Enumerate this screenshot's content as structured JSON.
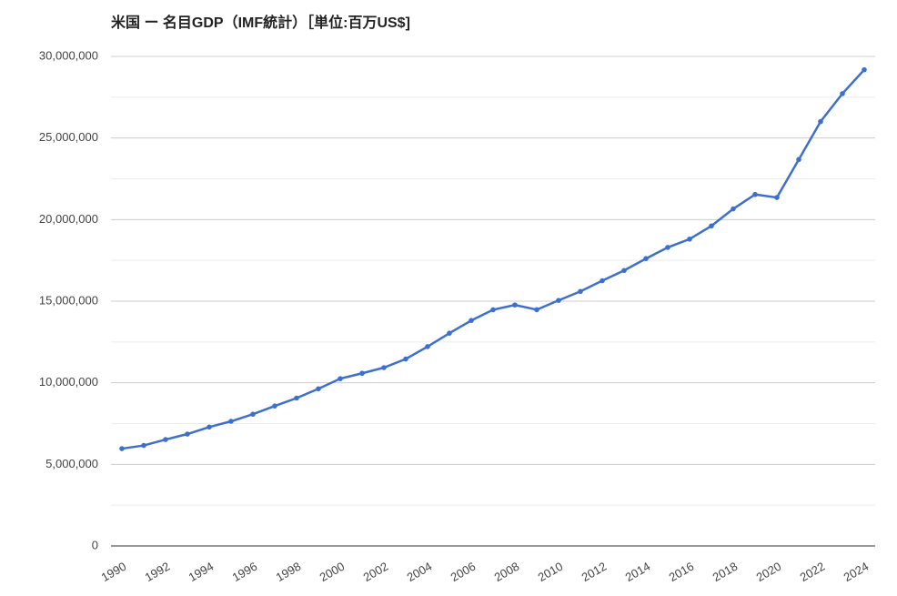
{
  "chart_data": {
    "type": "line",
    "title": "米国 ー 名目GDP（IMF統計）［単位:百万US$]",
    "x": [
      1990,
      1991,
      1992,
      1993,
      1994,
      1995,
      1996,
      1997,
      1998,
      1999,
      2000,
      2001,
      2002,
      2003,
      2004,
      2005,
      2006,
      2007,
      2008,
      2009,
      2010,
      2011,
      2012,
      2013,
      2014,
      2015,
      2016,
      2017,
      2018,
      2019,
      2020,
      2021,
      2022,
      2023,
      2024
    ],
    "series": [
      {
        "name": "GDP",
        "color": "#3c6fcf",
        "values": [
          5963000,
          6158000,
          6520000,
          6858000,
          7287000,
          7639000,
          8073000,
          8577000,
          9062000,
          9631000,
          10251000,
          10582000,
          10929000,
          11456000,
          12217000,
          13039000,
          13816000,
          14474000,
          14770000,
          14478000,
          15049000,
          15600000,
          16254000,
          16880000,
          17608000,
          18295000,
          18805000,
          19612000,
          20657000,
          21540000,
          21354000,
          23681000,
          26007000,
          27721000,
          29185000
        ]
      }
    ],
    "xlim": [
      1989.5,
      2024.5
    ],
    "xticks": [
      1990,
      1992,
      1994,
      1996,
      1998,
      2000,
      2002,
      2004,
      2006,
      2008,
      2010,
      2012,
      2014,
      2016,
      2018,
      2020,
      2022,
      2024
    ],
    "ylim": [
      0,
      30000000
    ],
    "yticks": [
      0,
      {
        "value": 5000000,
        "label": "5,000,000"
      },
      {
        "value": 10000000,
        "label": "10,000,000"
      },
      {
        "value": 15000000,
        "label": "15,000,000"
      },
      {
        "value": 20000000,
        "label": "20,000,000"
      },
      {
        "value": 25000000,
        "label": "25,000,000"
      },
      {
        "value": 30000000,
        "label": "30,000,000"
      }
    ],
    "y_minor_ticks": [
      2500000,
      7500000,
      12500000,
      17500000,
      22500000,
      27500000
    ],
    "grid": true
  }
}
